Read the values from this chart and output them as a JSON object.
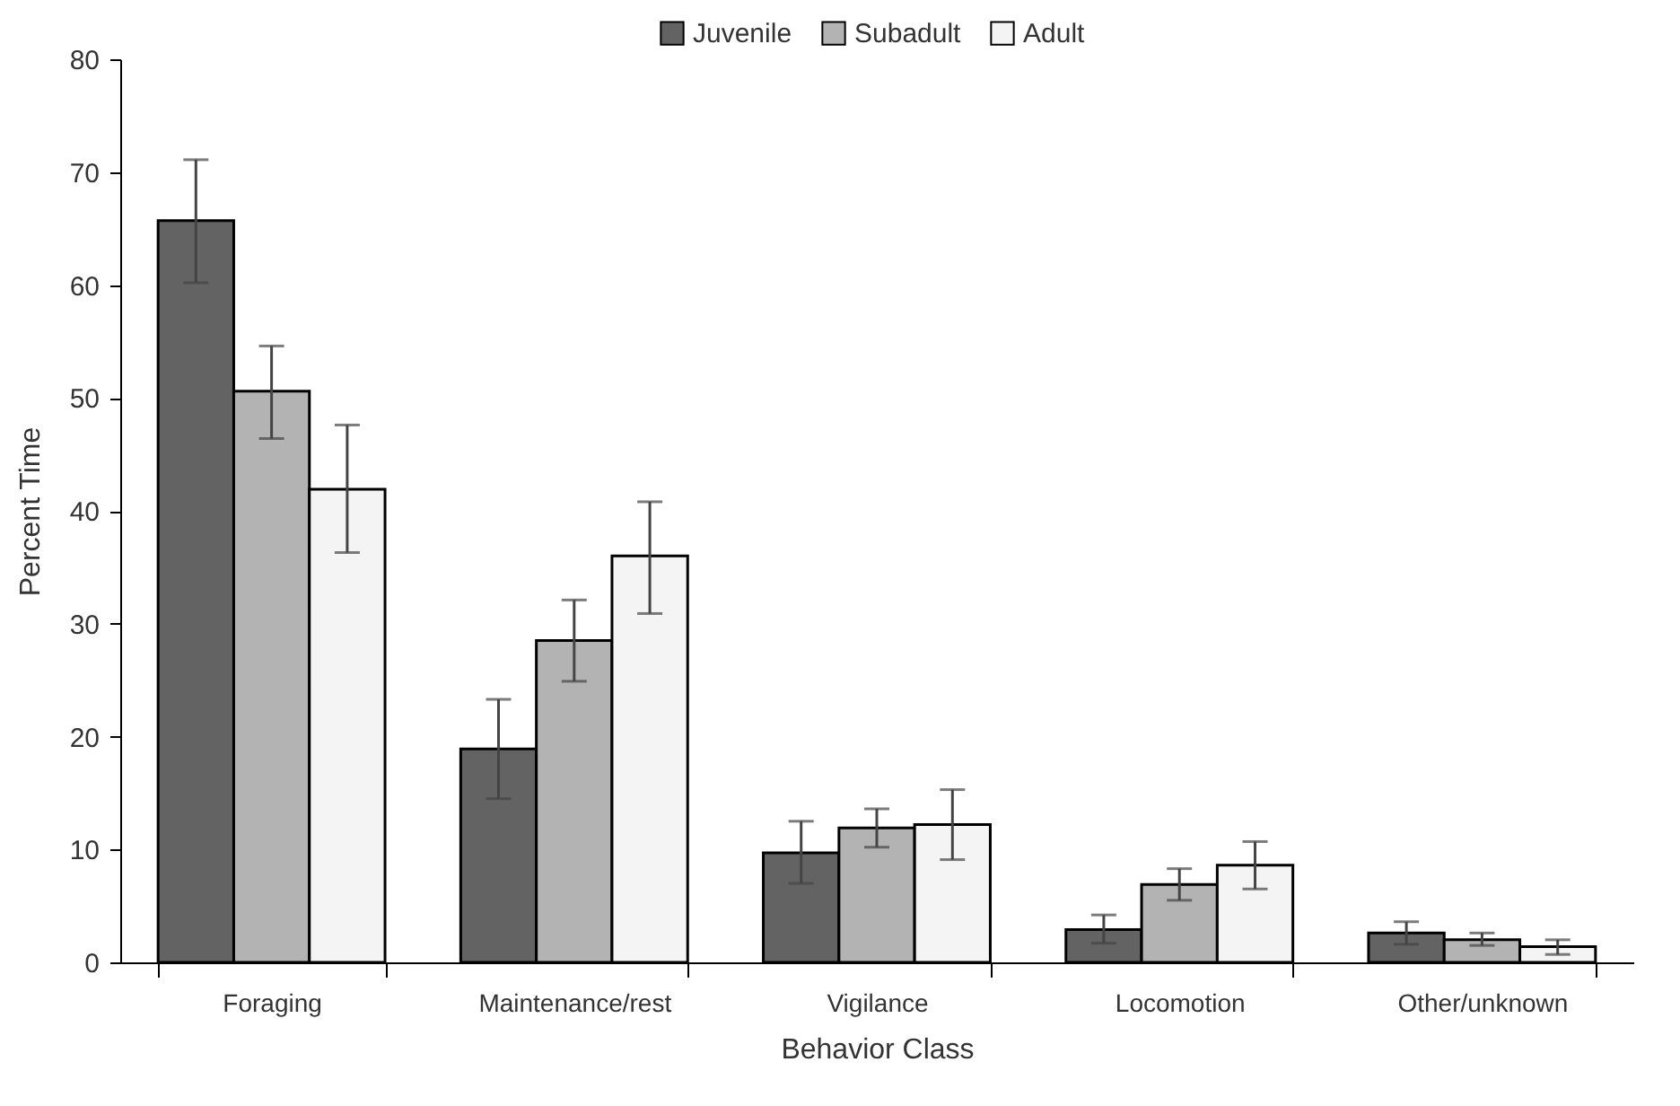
{
  "chart_data": {
    "type": "bar",
    "xlabel": "Behavior Class",
    "ylabel": "Percent Time",
    "categories": [
      "Foraging",
      "Maintenance/rest",
      "Vigilance",
      "Locomotion",
      "Other/unknown"
    ],
    "series": [
      {
        "name": "Juvenile",
        "color": "#636363",
        "values": [
          65.7,
          18.9,
          9.7,
          2.9,
          2.6
        ],
        "errors": [
          [
            60.2,
            71.1
          ],
          [
            14.5,
            23.3
          ],
          [
            7.0,
            12.5
          ],
          [
            1.7,
            4.2
          ],
          [
            1.6,
            3.6
          ]
        ]
      },
      {
        "name": "Subadult",
        "color": "#b3b3b3",
        "values": [
          50.6,
          28.5,
          11.9,
          6.9,
          2.0
        ],
        "errors": [
          [
            46.4,
            54.6
          ],
          [
            24.9,
            32.1
          ],
          [
            10.2,
            13.6
          ],
          [
            5.5,
            8.3
          ],
          [
            1.5,
            2.6
          ]
        ]
      },
      {
        "name": "Adult",
        "color": "#f4f4f4",
        "values": [
          41.9,
          36.0,
          12.2,
          8.6,
          1.4
        ],
        "errors": [
          [
            36.3,
            47.6
          ],
          [
            30.9,
            40.8
          ],
          [
            9.1,
            15.3
          ],
          [
            6.5,
            10.7
          ],
          [
            0.7,
            2.0
          ]
        ]
      }
    ],
    "ylim": [
      0,
      80
    ],
    "yticks": [
      0,
      10,
      20,
      30,
      40,
      50,
      60,
      70,
      80
    ],
    "grid": false,
    "legend": "top"
  }
}
